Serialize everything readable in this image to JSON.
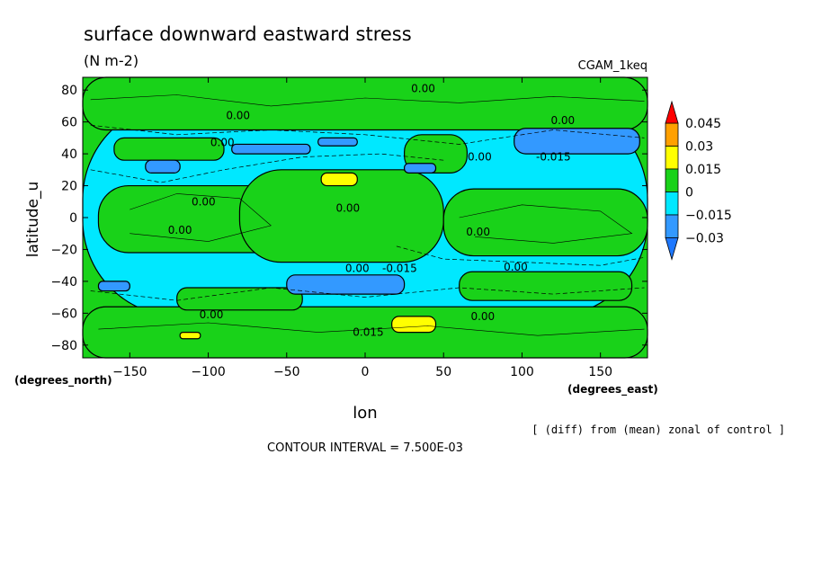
{
  "chart_data": {
    "type": "heatmap",
    "title": "surface downward eastward stress",
    "subtitle": "(N m-2)",
    "dataset_label": "CGAM_1keq",
    "xlabel": "lon",
    "ylabel": "latitude_u",
    "x_units": "(degrees_east)",
    "y_units": "(degrees_north)",
    "xlim": [
      -180,
      180
    ],
    "ylim": [
      -88,
      88
    ],
    "xticks": [
      -150,
      -100,
      -50,
      0,
      50,
      100,
      150
    ],
    "yticks": [
      -80,
      -60,
      -40,
      -20,
      0,
      20,
      40,
      60,
      80
    ],
    "levels": [
      -0.03,
      -0.015,
      0,
      0.015,
      0.03,
      0.045
    ],
    "level_labels": [
      "-0.03",
      "-0.015",
      "0",
      "0.015",
      "0.03",
      "0.045"
    ],
    "colors": {
      "below": "#1e78ff",
      "neg_030_015": "#3399ff",
      "neg_015_0": "#00e8ff",
      "pos_0_015": "#19d219",
      "pos_015_030": "#ffff00",
      "pos_030_045": "#ffa000",
      "above": "#ff0000"
    },
    "contour_labels": [
      {
        "text": "0.00",
        "lon": 37,
        "lat": 81
      },
      {
        "text": "0.00",
        "lon": -81,
        "lat": 64
      },
      {
        "text": "0.00",
        "lon": 126,
        "lat": 61
      },
      {
        "text": "0.00",
        "lon": -91,
        "lat": 47
      },
      {
        "text": "0.00",
        "lon": 73,
        "lat": 38
      },
      {
        "text": "-0.015",
        "lon": 120,
        "lat": 38
      },
      {
        "text": "0.00",
        "lon": -103,
        "lat": 10
      },
      {
        "text": "0.00",
        "lon": -11,
        "lat": 6
      },
      {
        "text": "0.00",
        "lon": -118,
        "lat": -8
      },
      {
        "text": "0.00",
        "lon": 72,
        "lat": -9
      },
      {
        "text": "0.00",
        "lon": -5,
        "lat": -32
      },
      {
        "text": "-0.015",
        "lon": 22,
        "lat": -32
      },
      {
        "text": "0.00",
        "lon": 96,
        "lat": -31
      },
      {
        "text": "0.00",
        "lon": -98,
        "lat": -61
      },
      {
        "text": "0.00",
        "lon": 75,
        "lat": -62
      },
      {
        "text": "0.015",
        "lon": 2,
        "lat": -72
      }
    ],
    "regions": [
      {
        "level": "neg_015_0",
        "lon": [
          -180,
          180
        ],
        "lat": [
          -62,
          72
        ]
      },
      {
        "level": "pos_0_015",
        "lon": [
          -180,
          180
        ],
        "lat": [
          55,
          88
        ]
      },
      {
        "level": "pos_0_015",
        "lon": [
          -180,
          180
        ],
        "lat": [
          -88,
          -56
        ]
      },
      {
        "level": "pos_0_015",
        "lon": [
          -170,
          -40
        ],
        "lat": [
          -22,
          20
        ]
      },
      {
        "level": "pos_0_015",
        "lon": [
          -80,
          50
        ],
        "lat": [
          -28,
          30
        ]
      },
      {
        "level": "pos_0_015",
        "lon": [
          50,
          180
        ],
        "lat": [
          -24,
          18
        ]
      },
      {
        "level": "pos_0_015",
        "lon": [
          25,
          65
        ],
        "lat": [
          28,
          52
        ]
      },
      {
        "level": "pos_0_015",
        "lon": [
          -160,
          -90
        ],
        "lat": [
          36,
          50
        ]
      },
      {
        "level": "pos_0_015",
        "lon": [
          -120,
          -40
        ],
        "lat": [
          -58,
          -44
        ]
      },
      {
        "level": "pos_0_015",
        "lon": [
          60,
          170
        ],
        "lat": [
          -52,
          -34
        ]
      },
      {
        "level": "neg_030_015",
        "lon": [
          -140,
          -118
        ],
        "lat": [
          28,
          36
        ]
      },
      {
        "level": "neg_030_015",
        "lon": [
          -85,
          -35
        ],
        "lat": [
          40,
          46
        ]
      },
      {
        "level": "neg_030_015",
        "lon": [
          -30,
          -5
        ],
        "lat": [
          45,
          50
        ]
      },
      {
        "level": "neg_030_015",
        "lon": [
          25,
          45
        ],
        "lat": [
          28,
          34
        ]
      },
      {
        "level": "neg_030_015",
        "lon": [
          95,
          175
        ],
        "lat": [
          40,
          56
        ]
      },
      {
        "level": "neg_030_015",
        "lon": [
          -50,
          25
        ],
        "lat": [
          -48,
          -36
        ]
      },
      {
        "level": "neg_030_015",
        "lon": [
          -170,
          -150
        ],
        "lat": [
          -46,
          -40
        ]
      },
      {
        "level": "pos_015_030",
        "lon": [
          -28,
          -5
        ],
        "lat": [
          20,
          28
        ]
      },
      {
        "level": "pos_015_030",
        "lon": [
          17,
          45
        ],
        "lat": [
          -72,
          -62
        ]
      },
      {
        "level": "pos_015_030",
        "lon": [
          -118,
          -105
        ],
        "lat": [
          -76,
          -72
        ]
      }
    ]
  },
  "footer": {
    "note": "[ (diff) from (mean) zonal of control ]",
    "contour_interval": "CONTOUR INTERVAL = 7.500E-03"
  }
}
